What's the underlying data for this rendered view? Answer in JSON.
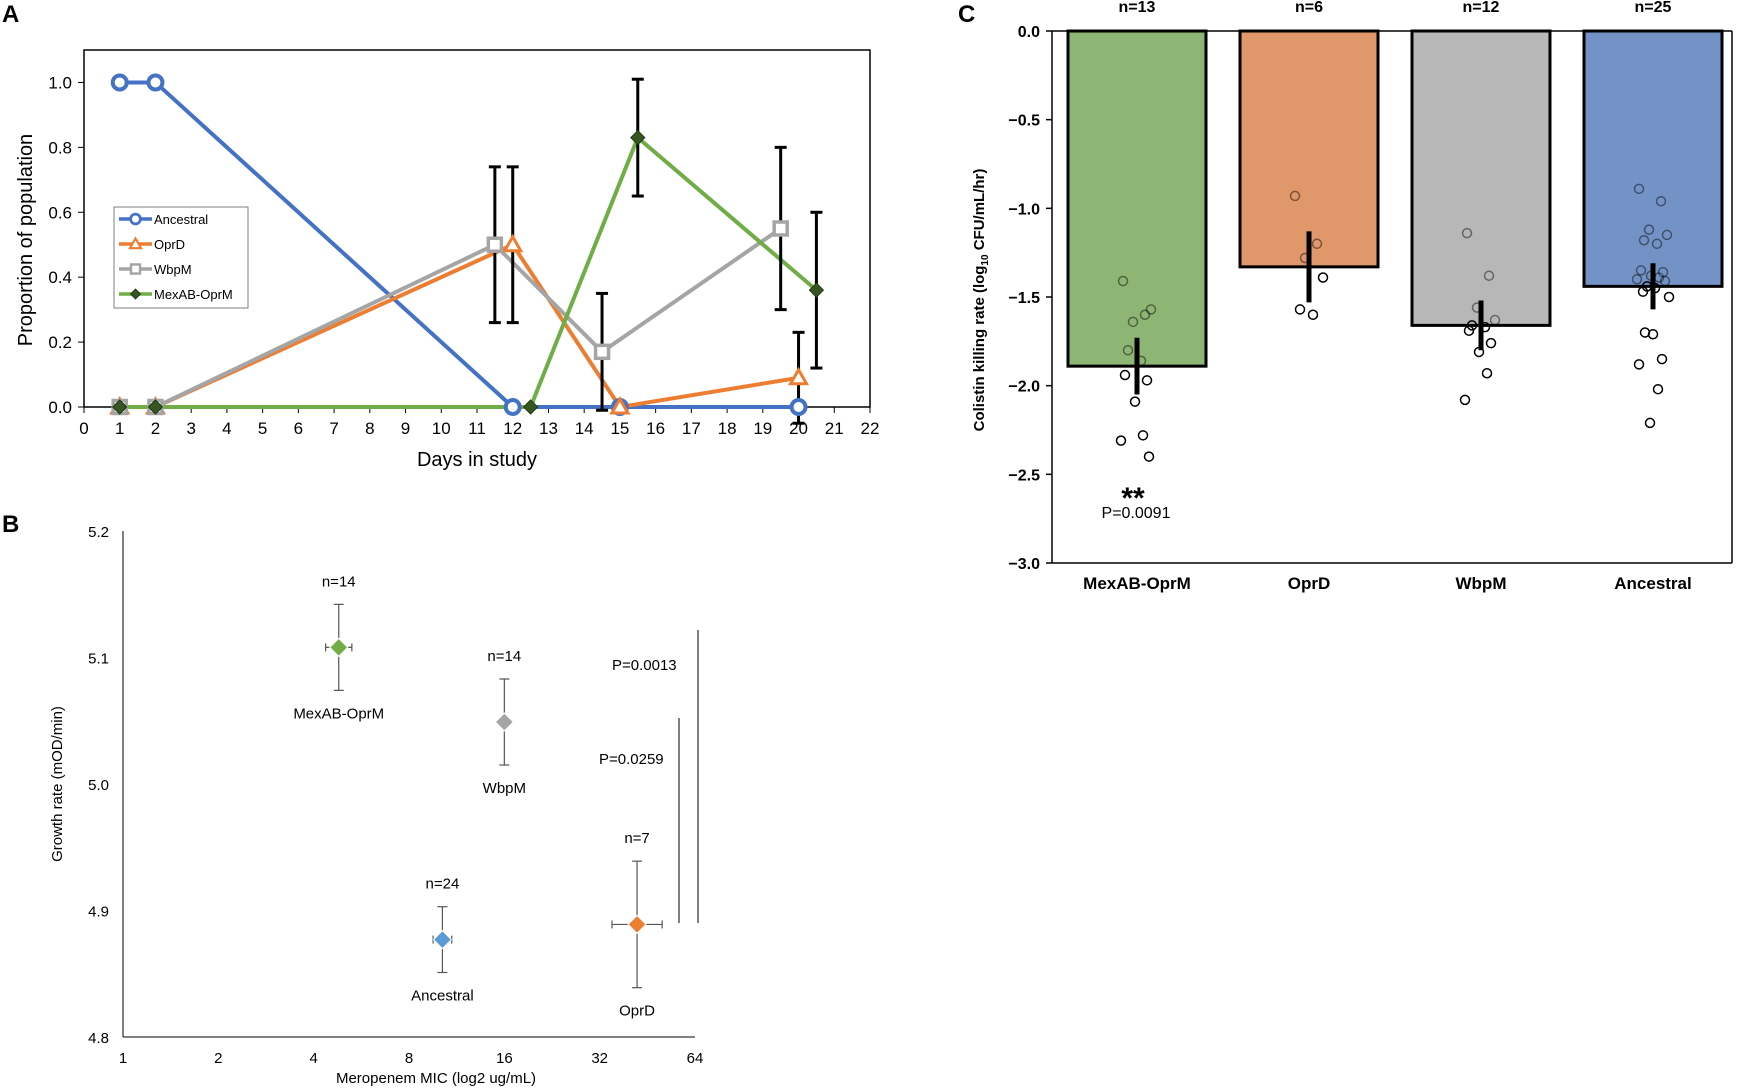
{
  "colors": {
    "ancestral": "#4472C4",
    "oprd": "#ED7D31",
    "wbpm": "#A5A5A5",
    "mexab_line": "#70AD47",
    "mexab_marker": "#375623",
    "bar_mexab": "#8DB573",
    "bar_oprd": "#E0976A",
    "bar_wbpm": "#B7B7B7",
    "bar_ancestral": "#7393C7",
    "b_mexab": "#70AD47",
    "b_wbpm": "#A5A5A5",
    "b_ancestral": "#5B9BD5",
    "b_oprd": "#ED7D31"
  },
  "chart_data": [
    {
      "panel_label": "A",
      "type": "line",
      "title": "",
      "xlabel": "Days in study",
      "ylabel": "Proportion of population",
      "xlim": [
        0,
        22
      ],
      "ylim": [
        0,
        1.1
      ],
      "xticks": [
        "0",
        "1",
        "2",
        "3",
        "4",
        "5",
        "6",
        "7",
        "8",
        "9",
        "10",
        "11",
        "12",
        "13",
        "14",
        "15",
        "16",
        "17",
        "18",
        "19",
        "20",
        "21",
        "22"
      ],
      "yticks": [
        "0.0",
        "0.2",
        "0.4",
        "0.6",
        "0.8",
        "1.0"
      ],
      "legend_position": "middle-left",
      "series": [
        {
          "name": "Ancestral",
          "marker": "circle",
          "x": [
            1,
            2,
            12,
            15,
            20
          ],
          "y": [
            1.0,
            1.0,
            0.0,
            0.0,
            0.0
          ],
          "err": [
            0,
            0,
            0,
            0,
            0
          ]
        },
        {
          "name": "OprD",
          "marker": "triangle",
          "x": [
            1,
            2,
            12,
            15,
            20
          ],
          "y": [
            0.0,
            0.0,
            0.5,
            0.0,
            0.09
          ],
          "err": [
            0,
            0,
            0.24,
            0,
            0.14
          ]
        },
        {
          "name": "WbpM",
          "marker": "square",
          "x": [
            1,
            2,
            11.5,
            14.5,
            19.5
          ],
          "y": [
            0.0,
            0.0,
            0.5,
            0.17,
            0.55
          ],
          "err": [
            0,
            0,
            0.24,
            0.18,
            0.25
          ]
        },
        {
          "name": "MexAB-OprM",
          "marker": "diamond",
          "x": [
            1,
            2,
            12.5,
            15.5,
            20.5
          ],
          "y": [
            0.0,
            0.0,
            0.0,
            0.83,
            0.36
          ],
          "err": [
            0,
            0,
            0,
            0.18,
            0.24
          ]
        }
      ]
    },
    {
      "panel_label": "B",
      "type": "scatter",
      "title": "",
      "xlabel": "Meropenem MIC (log2 ug/mL)",
      "ylabel": "Growth rate (mOD/min)",
      "x_scale": "log2",
      "xlim": [
        1,
        64
      ],
      "ylim": [
        4.8,
        5.2
      ],
      "xticks": [
        "1",
        "2",
        "4",
        "8",
        "16",
        "32",
        "64"
      ],
      "yticks": [
        "4.8",
        "4.9",
        "5.0",
        "5.1",
        "5.2"
      ],
      "points": [
        {
          "name": "MexAB-OprM",
          "n": "n=14",
          "x": 4.8,
          "y": 5.108,
          "yerr": 0.034,
          "xerr_factor": 1.1
        },
        {
          "name": "WbpM",
          "n": "n=14",
          "x": 16,
          "y": 5.049,
          "yerr": 0.034,
          "xerr_factor": 1.0
        },
        {
          "name": "Ancestral",
          "n": "n=24",
          "x": 10.2,
          "y": 4.877,
          "yerr": 0.026,
          "xerr_factor": 1.07
        },
        {
          "name": "OprD",
          "n": "n=7",
          "x": 42,
          "y": 4.889,
          "yerr": 0.05,
          "xerr_factor": 1.2
        }
      ],
      "annotations": [
        "P=0.0013",
        "P=0.0259"
      ]
    },
    {
      "panel_label": "C",
      "type": "bar",
      "title": "",
      "xlabel": "",
      "ylabel_main": "Colistin killing rate (log",
      "ylabel_sub": "10",
      "ylabel_tail": " CFU/mL/hr)",
      "ylim": [
        -3.0,
        0.0
      ],
      "yticks": [
        "0.0",
        "−0.5",
        "−1.0",
        "−1.5",
        "−2.0",
        "−2.5",
        "−3.0"
      ],
      "categories": [
        "MexAB-OprM",
        "OprD",
        "WbpM",
        "Ancestral"
      ],
      "n_labels": [
        "n=13",
        "n=6",
        "n=12",
        "n=25"
      ],
      "values": [
        -1.89,
        -1.33,
        -1.66,
        -1.44
      ],
      "err": [
        0.16,
        0.2,
        0.14,
        0.13
      ],
      "points": [
        [
          -1.41,
          -1.6,
          -1.64,
          -1.57,
          -1.8,
          -1.86,
          -1.94,
          -1.97,
          -2.09,
          -2.28,
          -2.31,
          -2.4
        ],
        [
          -0.93,
          -1.2,
          -1.28,
          -1.39,
          -1.57,
          -1.6
        ],
        [
          -1.14,
          -1.38,
          -1.56,
          -1.63,
          -1.66,
          -1.67,
          -1.69,
          -1.76,
          -1.81,
          -1.93,
          -2.08
        ],
        [
          -0.89,
          -0.96,
          -1.12,
          -1.15,
          -1.18,
          -1.2,
          -1.35,
          -1.36,
          -1.38,
          -1.39,
          -1.4,
          -1.41,
          -1.44,
          -1.45,
          -1.47,
          -1.5,
          -1.7,
          -1.71,
          -1.85,
          -1.88,
          -2.02,
          -2.21
        ]
      ],
      "significance": "**",
      "p_value": "P=0.0091"
    }
  ]
}
